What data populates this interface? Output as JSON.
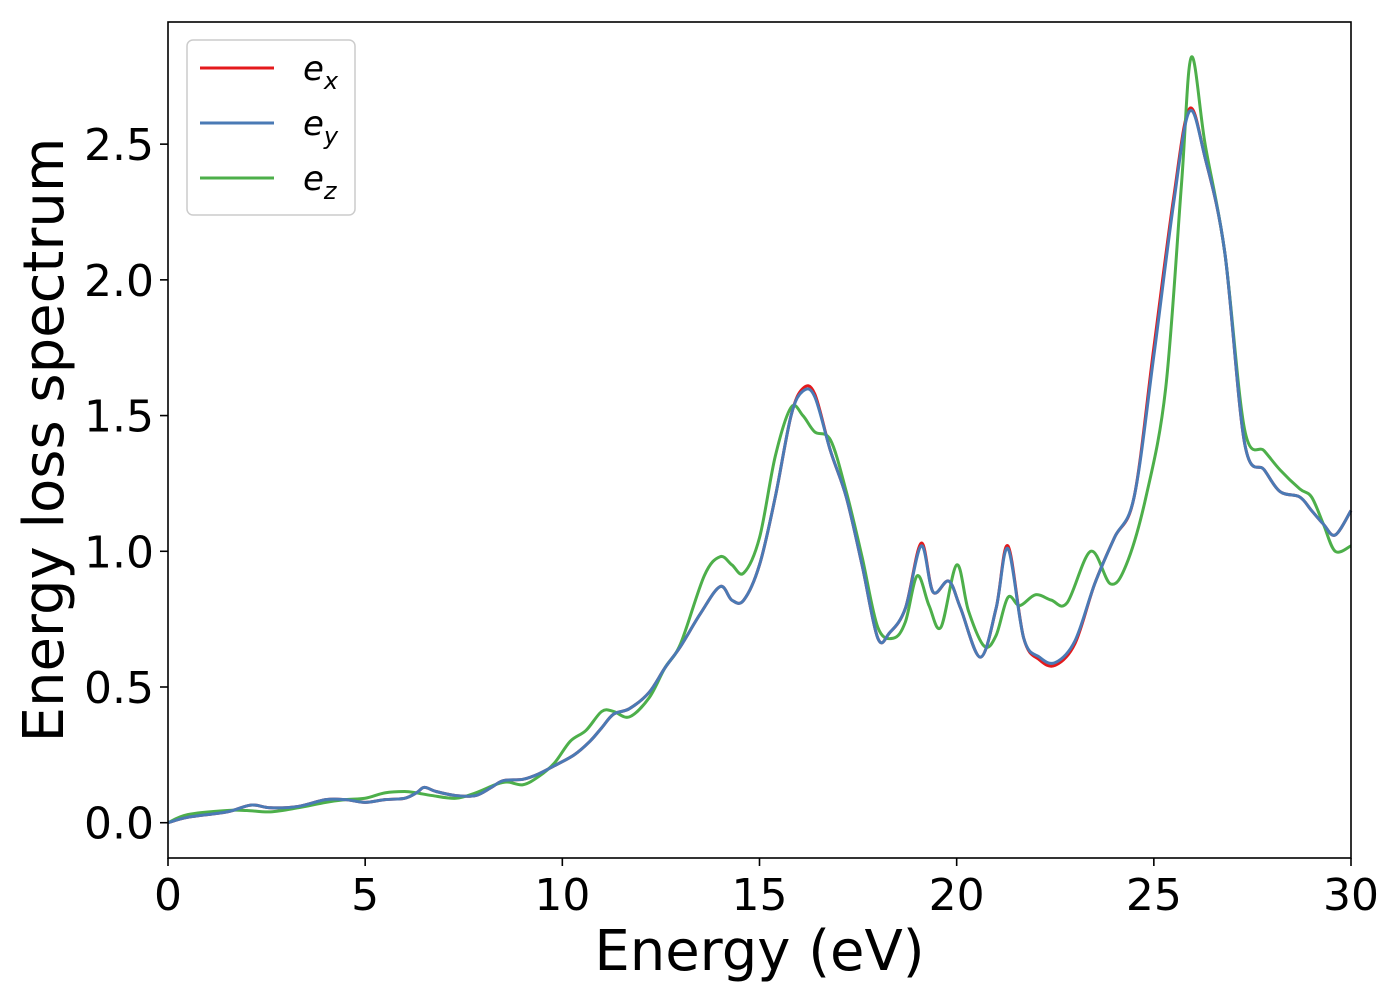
{
  "chart_data": {
    "type": "line",
    "xlabel": "Energy (eV)",
    "ylabel": "Energy loss spectrum",
    "xlim": [
      0,
      30
    ],
    "ylim": [
      -0.13,
      2.95
    ],
    "grid": false,
    "legend_position": "top-left",
    "x_ticks": [
      "0",
      "5",
      "10",
      "15",
      "20",
      "25",
      "30"
    ],
    "y_ticks": [
      "0.0",
      "0.5",
      "1.0",
      "1.5",
      "2.0",
      "2.5"
    ],
    "series": [
      {
        "name": "e_x",
        "legend_base": "e",
        "legend_sub": "x",
        "color": "#e41a1c",
        "x": [
          0,
          0.5,
          1.5,
          2.1,
          2.6,
          3.3,
          4.0,
          4.5,
          5.0,
          5.5,
          6.0,
          6.3,
          6.5,
          6.8,
          7.3,
          7.8,
          8.2,
          8.5,
          9.0,
          9.4,
          9.8,
          10.3,
          10.7,
          11.0,
          11.3,
          11.7,
          12.2,
          12.6,
          13.0,
          13.5,
          14.0,
          14.3,
          14.6,
          15.0,
          15.4,
          15.8,
          16.1,
          16.4,
          16.8,
          17.2,
          17.6,
          18.0,
          18.3,
          18.7,
          19.1,
          19.4,
          19.8,
          20.1,
          20.6,
          21.0,
          21.3,
          21.7,
          22.1,
          22.5,
          23.0,
          23.5,
          24.0,
          24.5,
          25.0,
          25.5,
          25.9,
          26.3,
          26.8,
          27.3,
          27.8,
          28.2,
          28.7,
          29.0,
          29.3,
          29.6,
          30.0
        ],
        "values": [
          0.0,
          0.02,
          0.04,
          0.065,
          0.055,
          0.06,
          0.085,
          0.085,
          0.075,
          0.085,
          0.09,
          0.11,
          0.13,
          0.115,
          0.1,
          0.1,
          0.13,
          0.155,
          0.16,
          0.18,
          0.21,
          0.25,
          0.3,
          0.35,
          0.4,
          0.42,
          0.48,
          0.57,
          0.65,
          0.77,
          0.87,
          0.82,
          0.82,
          0.95,
          1.2,
          1.5,
          1.6,
          1.58,
          1.37,
          1.2,
          0.95,
          0.68,
          0.7,
          0.79,
          1.03,
          0.85,
          0.89,
          0.79,
          0.61,
          0.79,
          1.02,
          0.68,
          0.6,
          0.58,
          0.66,
          0.88,
          1.05,
          1.2,
          1.75,
          2.3,
          2.63,
          2.45,
          2.1,
          1.4,
          1.3,
          1.22,
          1.2,
          1.15,
          1.1,
          1.06,
          1.15
        ]
      },
      {
        "name": "e_y",
        "legend_base": "e",
        "legend_sub": "y",
        "color": "#4a7ab5",
        "x": [
          0,
          0.5,
          1.5,
          2.1,
          2.6,
          3.3,
          4.0,
          4.5,
          5.0,
          5.5,
          6.0,
          6.3,
          6.5,
          6.8,
          7.3,
          7.8,
          8.2,
          8.5,
          9.0,
          9.4,
          9.8,
          10.3,
          10.7,
          11.0,
          11.3,
          11.7,
          12.2,
          12.6,
          13.0,
          13.5,
          14.0,
          14.3,
          14.6,
          15.0,
          15.4,
          15.8,
          16.1,
          16.4,
          16.8,
          17.2,
          17.6,
          18.0,
          18.3,
          18.7,
          19.1,
          19.4,
          19.8,
          20.1,
          20.6,
          21.0,
          21.3,
          21.7,
          22.1,
          22.5,
          23.0,
          23.5,
          24.0,
          24.5,
          25.0,
          25.5,
          25.9,
          26.3,
          26.8,
          27.3,
          27.8,
          28.2,
          28.7,
          29.0,
          29.3,
          29.6,
          30.0
        ],
        "values": [
          0.0,
          0.02,
          0.04,
          0.065,
          0.055,
          0.06,
          0.085,
          0.085,
          0.075,
          0.085,
          0.09,
          0.11,
          0.13,
          0.115,
          0.1,
          0.1,
          0.13,
          0.155,
          0.16,
          0.18,
          0.21,
          0.25,
          0.3,
          0.35,
          0.4,
          0.42,
          0.48,
          0.57,
          0.65,
          0.77,
          0.87,
          0.82,
          0.82,
          0.95,
          1.2,
          1.5,
          1.59,
          1.57,
          1.37,
          1.2,
          0.95,
          0.68,
          0.7,
          0.79,
          1.02,
          0.85,
          0.89,
          0.79,
          0.61,
          0.79,
          1.01,
          0.68,
          0.61,
          0.59,
          0.67,
          0.88,
          1.05,
          1.2,
          1.72,
          2.28,
          2.62,
          2.45,
          2.1,
          1.4,
          1.3,
          1.22,
          1.2,
          1.15,
          1.1,
          1.06,
          1.15
        ]
      },
      {
        "name": "e_z",
        "legend_base": "e",
        "legend_sub": "z",
        "color": "#4daf4a",
        "x": [
          0,
          0.5,
          1.5,
          2.0,
          2.6,
          3.3,
          4.0,
          4.5,
          5.0,
          5.5,
          6.0,
          6.3,
          6.7,
          7.3,
          7.8,
          8.3,
          8.6,
          9.0,
          9.4,
          9.8,
          10.2,
          10.6,
          11.0,
          11.3,
          11.7,
          12.2,
          12.6,
          13.0,
          13.6,
          14.0,
          14.3,
          14.6,
          15.0,
          15.4,
          15.8,
          16.1,
          16.4,
          16.8,
          17.2,
          17.6,
          18.0,
          18.4,
          18.7,
          19.0,
          19.3,
          19.6,
          20.0,
          20.3,
          20.7,
          21.0,
          21.3,
          21.6,
          22.0,
          22.4,
          22.8,
          23.4,
          23.9,
          24.3,
          24.8,
          25.3,
          25.7,
          25.95,
          26.3,
          26.8,
          27.3,
          27.8,
          28.2,
          28.7,
          29.0,
          29.3,
          29.6,
          30.0
        ],
        "values": [
          0.0,
          0.03,
          0.045,
          0.045,
          0.04,
          0.055,
          0.075,
          0.085,
          0.09,
          0.11,
          0.115,
          0.11,
          0.1,
          0.09,
          0.11,
          0.14,
          0.15,
          0.14,
          0.17,
          0.22,
          0.3,
          0.34,
          0.41,
          0.41,
          0.39,
          0.46,
          0.57,
          0.66,
          0.91,
          0.98,
          0.95,
          0.92,
          1.05,
          1.35,
          1.53,
          1.5,
          1.44,
          1.41,
          1.22,
          0.98,
          0.72,
          0.68,
          0.74,
          0.91,
          0.8,
          0.72,
          0.95,
          0.78,
          0.65,
          0.69,
          0.83,
          0.8,
          0.84,
          0.82,
          0.81,
          1.0,
          0.88,
          0.95,
          1.2,
          1.6,
          2.35,
          2.82,
          2.5,
          2.1,
          1.45,
          1.37,
          1.3,
          1.23,
          1.2,
          1.1,
          1.0,
          1.02
        ]
      }
    ]
  }
}
